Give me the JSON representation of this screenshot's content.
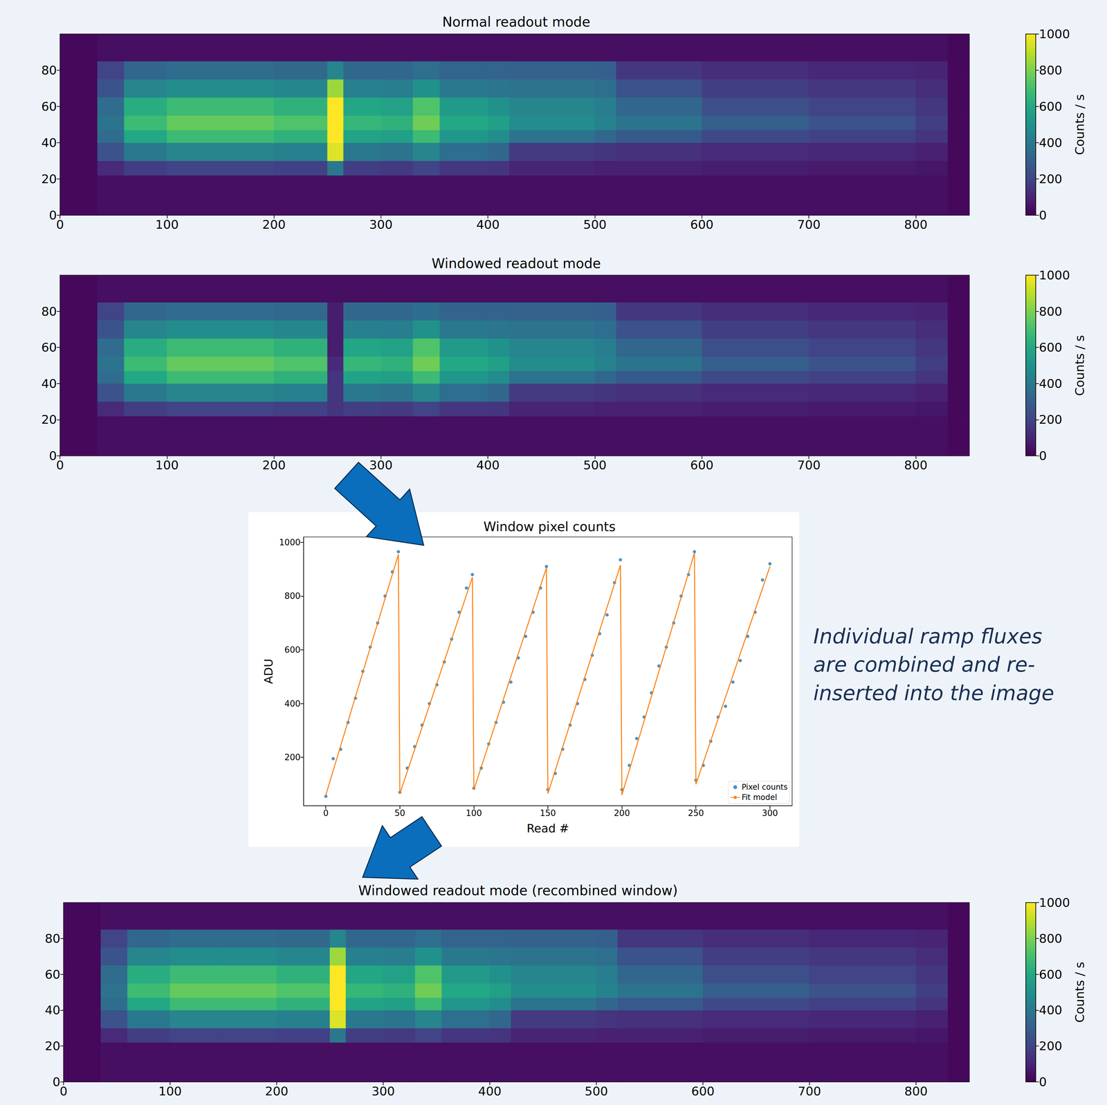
{
  "chart_data": [
    {
      "type": "heatmap",
      "title": "Normal readout mode",
      "x_edges": [
        0,
        35,
        60,
        100,
        150,
        200,
        250,
        265,
        300,
        330,
        355,
        400,
        420,
        500,
        520,
        600,
        700,
        800,
        830,
        850
      ],
      "y_edges": [
        0,
        22,
        30,
        40,
        47,
        55,
        65,
        75,
        85,
        100
      ],
      "cells": [
        [
          20,
          40,
          40,
          40,
          40,
          40,
          40,
          40,
          40,
          40,
          40,
          40,
          40,
          40,
          40,
          40,
          40,
          40,
          20
        ],
        [
          20,
          120,
          180,
          200,
          200,
          190,
          400,
          180,
          170,
          200,
          160,
          150,
          100,
          90,
          90,
          80,
          70,
          60,
          20
        ],
        [
          20,
          250,
          400,
          450,
          450,
          430,
          950,
          400,
          380,
          450,
          360,
          330,
          170,
          150,
          140,
          120,
          110,
          90,
          20
        ],
        [
          20,
          350,
          600,
          680,
          680,
          640,
          1000,
          580,
          560,
          680,
          520,
          480,
          380,
          330,
          280,
          220,
          190,
          150,
          20
        ],
        [
          20,
          380,
          680,
          760,
          760,
          720,
          1000,
          660,
          640,
          780,
          600,
          560,
          480,
          440,
          380,
          300,
          250,
          180,
          20
        ],
        [
          20,
          350,
          620,
          680,
          680,
          640,
          1000,
          590,
          570,
          720,
          540,
          500,
          450,
          420,
          330,
          240,
          200,
          160,
          20
        ],
        [
          20,
          260,
          450,
          480,
          480,
          460,
          850,
          430,
          420,
          500,
          400,
          390,
          380,
          360,
          250,
          180,
          160,
          130,
          20
        ],
        [
          20,
          200,
          330,
          350,
          350,
          340,
          450,
          330,
          330,
          360,
          320,
          320,
          310,
          300,
          160,
          130,
          110,
          100,
          20
        ],
        [
          20,
          40,
          40,
          40,
          40,
          40,
          40,
          40,
          40,
          40,
          40,
          40,
          40,
          40,
          40,
          40,
          40,
          40,
          20
        ]
      ],
      "xlim": [
        0,
        850
      ],
      "xticks": [
        0,
        100,
        200,
        300,
        400,
        500,
        600,
        700,
        800
      ],
      "ylim": [
        0,
        100
      ],
      "yticks": [
        0,
        20,
        40,
        60,
        80
      ],
      "colorbar_lim": [
        0,
        1000
      ],
      "colorbar_ticks": [
        0,
        200,
        400,
        600,
        800,
        1000
      ],
      "colorbar_label": "Counts / s"
    },
    {
      "type": "heatmap",
      "title": "Windowed readout mode",
      "x_edges": [
        0,
        35,
        60,
        100,
        150,
        200,
        250,
        265,
        300,
        330,
        355,
        400,
        420,
        500,
        520,
        600,
        700,
        800,
        830,
        850
      ],
      "y_edges": [
        0,
        22,
        30,
        40,
        47,
        55,
        65,
        75,
        85,
        100
      ],
      "cells": [
        [
          20,
          40,
          40,
          40,
          40,
          40,
          40,
          40,
          40,
          40,
          40,
          40,
          40,
          40,
          40,
          40,
          40,
          40,
          20
        ],
        [
          20,
          120,
          180,
          200,
          200,
          190,
          150,
          180,
          170,
          200,
          160,
          150,
          100,
          90,
          90,
          80,
          70,
          60,
          20
        ],
        [
          20,
          250,
          400,
          450,
          450,
          430,
          150,
          400,
          380,
          450,
          360,
          330,
          170,
          150,
          140,
          120,
          110,
          90,
          20
        ],
        [
          20,
          350,
          600,
          680,
          680,
          640,
          150,
          580,
          560,
          680,
          520,
          480,
          380,
          330,
          280,
          220,
          190,
          150,
          20
        ],
        [
          20,
          380,
          680,
          760,
          760,
          720,
          120,
          660,
          640,
          780,
          600,
          560,
          480,
          440,
          380,
          300,
          250,
          180,
          20
        ],
        [
          20,
          350,
          620,
          680,
          680,
          640,
          80,
          590,
          570,
          720,
          540,
          500,
          450,
          420,
          330,
          240,
          200,
          160,
          20
        ],
        [
          20,
          260,
          450,
          480,
          480,
          460,
          80,
          430,
          420,
          500,
          400,
          390,
          380,
          360,
          250,
          180,
          160,
          130,
          20
        ],
        [
          20,
          200,
          330,
          350,
          350,
          340,
          80,
          330,
          330,
          360,
          320,
          320,
          310,
          300,
          160,
          130,
          110,
          100,
          20
        ],
        [
          20,
          40,
          40,
          40,
          40,
          40,
          40,
          40,
          40,
          40,
          40,
          40,
          40,
          40,
          40,
          40,
          40,
          40,
          20
        ]
      ],
      "xlim": [
        0,
        850
      ],
      "xticks": [
        0,
        100,
        200,
        300,
        400,
        500,
        600,
        700,
        800
      ],
      "ylim": [
        0,
        100
      ],
      "yticks": [
        0,
        20,
        40,
        60,
        80
      ],
      "colorbar_lim": [
        0,
        1000
      ],
      "colorbar_ticks": [
        0,
        200,
        400,
        600,
        800,
        1000
      ],
      "colorbar_label": "Counts / s"
    },
    {
      "type": "heatmap",
      "title": "Windowed readout mode (recombined window)",
      "x_edges": [
        0,
        35,
        60,
        100,
        150,
        200,
        250,
        265,
        300,
        330,
        355,
        400,
        420,
        500,
        520,
        600,
        700,
        800,
        830,
        850
      ],
      "y_edges": [
        0,
        22,
        30,
        40,
        47,
        55,
        65,
        75,
        85,
        100
      ],
      "cells": [
        [
          20,
          40,
          40,
          40,
          40,
          40,
          40,
          40,
          40,
          40,
          40,
          40,
          40,
          40,
          40,
          40,
          40,
          40,
          20
        ],
        [
          20,
          120,
          180,
          200,
          200,
          190,
          400,
          180,
          170,
          200,
          160,
          150,
          100,
          90,
          90,
          80,
          70,
          60,
          20
        ],
        [
          20,
          250,
          400,
          450,
          450,
          430,
          950,
          400,
          380,
          450,
          360,
          330,
          170,
          150,
          140,
          120,
          110,
          90,
          20
        ],
        [
          20,
          350,
          600,
          680,
          680,
          640,
          1000,
          580,
          560,
          680,
          520,
          480,
          380,
          330,
          280,
          220,
          190,
          150,
          20
        ],
        [
          20,
          380,
          680,
          760,
          760,
          720,
          1000,
          660,
          640,
          780,
          600,
          560,
          480,
          440,
          380,
          300,
          250,
          180,
          20
        ],
        [
          20,
          350,
          620,
          680,
          680,
          640,
          1000,
          590,
          570,
          720,
          540,
          500,
          450,
          420,
          330,
          240,
          200,
          160,
          20
        ],
        [
          20,
          260,
          450,
          480,
          480,
          460,
          850,
          430,
          420,
          500,
          400,
          390,
          380,
          360,
          250,
          180,
          160,
          130,
          20
        ],
        [
          20,
          200,
          330,
          350,
          350,
          340,
          450,
          330,
          330,
          360,
          320,
          320,
          310,
          300,
          160,
          130,
          110,
          100,
          20
        ],
        [
          20,
          40,
          40,
          40,
          40,
          40,
          40,
          40,
          40,
          40,
          40,
          40,
          40,
          40,
          40,
          40,
          40,
          40,
          20
        ]
      ],
      "xlim": [
        0,
        850
      ],
      "xticks": [
        0,
        100,
        200,
        300,
        400,
        500,
        600,
        700,
        800
      ],
      "ylim": [
        0,
        100
      ],
      "yticks": [
        0,
        20,
        40,
        60,
        80
      ],
      "colorbar_lim": [
        0,
        1000
      ],
      "colorbar_ticks": [
        0,
        200,
        400,
        600,
        800,
        1000
      ],
      "colorbar_label": "Counts / s"
    },
    {
      "type": "scatter",
      "title": "Window pixel counts",
      "x_label": "Read #",
      "y_label": "ADU",
      "xlim": [
        -15,
        315
      ],
      "xticks": [
        0,
        50,
        100,
        150,
        200,
        250,
        300
      ],
      "ylim": [
        20,
        1020
      ],
      "yticks": [
        200,
        400,
        600,
        800,
        1000
      ],
      "legend": "lower right",
      "annotations": [
        "Individual ramp fluxes are combined and re-inserted into the image"
      ],
      "series": [
        {
          "name": "Pixel counts",
          "type": "scatter",
          "marker": "o",
          "color": "#1f77b4",
          "x": [
            0,
            5,
            10,
            15,
            20,
            25,
            30,
            35,
            40,
            45,
            49,
            50,
            55,
            60,
            65,
            70,
            75,
            80,
            85,
            90,
            95,
            99,
            100,
            105,
            110,
            115,
            120,
            125,
            130,
            135,
            140,
            145,
            149,
            150,
            155,
            160,
            165,
            170,
            175,
            180,
            185,
            190,
            195,
            199,
            200,
            205,
            210,
            215,
            220,
            225,
            230,
            235,
            240,
            245,
            249,
            250,
            255,
            260,
            265,
            270,
            275,
            280,
            285,
            290,
            295,
            300
          ],
          "values": [
            55,
            195,
            230,
            330,
            420,
            520,
            610,
            700,
            800,
            890,
            965,
            70,
            160,
            240,
            320,
            400,
            470,
            555,
            640,
            740,
            830,
            880,
            85,
            160,
            250,
            330,
            405,
            480,
            570,
            650,
            740,
            830,
            910,
            80,
            140,
            230,
            320,
            400,
            490,
            580,
            660,
            730,
            850,
            935,
            80,
            170,
            270,
            350,
            440,
            540,
            610,
            700,
            800,
            880,
            965,
            115,
            170,
            260,
            350,
            390,
            480,
            560,
            650,
            740,
            860,
            920
          ]
        },
        {
          "name": "Fit model",
          "type": "line",
          "line_style": "solid",
          "color": "#ff7f0e",
          "x": [
            0,
            49,
            50,
            99,
            100,
            149,
            150,
            199,
            200,
            249,
            250,
            300
          ],
          "values": [
            60,
            955,
            65,
            870,
            80,
            905,
            65,
            915,
            60,
            960,
            100,
            910
          ]
        }
      ]
    }
  ]
}
